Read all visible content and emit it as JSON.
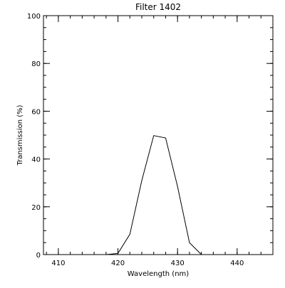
{
  "chart_data": {
    "type": "line",
    "title": "Filter  1402",
    "xlabel": "Wavelength (nm)",
    "ylabel": "Transmission (%)",
    "xlim": [
      407.5,
      446
    ],
    "ylim": [
      0,
      100
    ],
    "xticks": [
      410,
      420,
      430,
      440
    ],
    "yticks": [
      0,
      20,
      40,
      60,
      80,
      100
    ],
    "xticks_minor_step": 2,
    "yticks_minor_step": 5,
    "grid": false,
    "series": [
      {
        "x": [
          418,
          420,
          422,
          424,
          426,
          428,
          430,
          432,
          434,
          435
        ],
        "y": [
          0,
          0.5,
          8.5,
          31,
          49.8,
          48.8,
          28.5,
          5,
          0,
          0
        ]
      }
    ],
    "colors": {
      "line": "#000000",
      "axis": "#000000",
      "background": "#ffffff"
    }
  }
}
